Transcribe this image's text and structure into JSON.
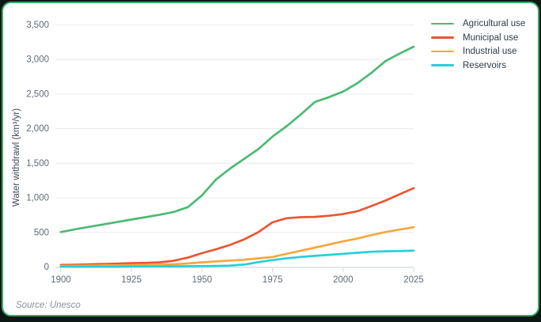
{
  "frame": {
    "outer_background": "#0c1813",
    "card_background": "#ffffff",
    "card_border_color": "#35ab63"
  },
  "colors": {
    "tick_text": "#5f6a75",
    "legend_text": "#2f3b47",
    "axis_line": "#d9dde1",
    "grid_line": "#ecedf0",
    "ylabel_text": "#3e4a56",
    "source_text": "#8b9197"
  },
  "chart_data": {
    "type": "line",
    "title": "",
    "xlabel": "",
    "ylabel": "Water withdrawl (km³/yr)",
    "xlim": [
      1900,
      2025
    ],
    "ylim": [
      0,
      3500
    ],
    "grid": "horizontal gridlines on",
    "legend_position": "top-right",
    "xticks": [
      1900,
      1925,
      1950,
      1975,
      2000,
      2025
    ],
    "yticks": [
      0,
      500,
      1000,
      1500,
      2000,
      2500,
      3000,
      3500
    ],
    "ytick_labels": [
      "0",
      "500",
      "1,000",
      "1,500",
      "2,000",
      "2,500",
      "3,000",
      "3,500"
    ],
    "x": [
      1900,
      1905,
      1910,
      1915,
      1920,
      1925,
      1930,
      1935,
      1940,
      1945,
      1950,
      1955,
      1960,
      1965,
      1970,
      1975,
      1980,
      1985,
      1990,
      1995,
      2000,
      2005,
      2010,
      2015,
      2020,
      2025
    ],
    "series": [
      {
        "name": "Agricultural use",
        "color": "#4cba74",
        "values": [
          500,
          540,
          575,
          610,
          645,
          680,
          715,
          750,
          790,
          860,
          1030,
          1260,
          1420,
          1560,
          1700,
          1880,
          2030,
          2200,
          2380,
          2450,
          2530,
          2650,
          2800,
          2970,
          3080,
          3180
        ]
      },
      {
        "name": "Municipal use",
        "color": "#ec5532",
        "values": [
          25,
          28,
          33,
          38,
          44,
          50,
          55,
          62,
          85,
          130,
          195,
          250,
          315,
          395,
          500,
          640,
          700,
          715,
          720,
          735,
          760,
          800,
          875,
          955,
          1045,
          1135
        ]
      },
      {
        "name": "Industrial use",
        "color": "#f5a83e",
        "values": [
          12,
          14,
          16,
          18,
          20,
          22,
          25,
          28,
          34,
          46,
          62,
          76,
          88,
          100,
          120,
          140,
          185,
          230,
          275,
          320,
          365,
          405,
          455,
          500,
          535,
          570
        ]
      },
      {
        "name": "Reservoirs",
        "color": "#27cfd9",
        "values": [
          0,
          0,
          0,
          0,
          0,
          2,
          3,
          4,
          5,
          6,
          8,
          10,
          15,
          30,
          65,
          95,
          120,
          140,
          155,
          170,
          185,
          200,
          215,
          222,
          225,
          230
        ]
      }
    ]
  },
  "source": {
    "label": "Source: Unesco"
  }
}
